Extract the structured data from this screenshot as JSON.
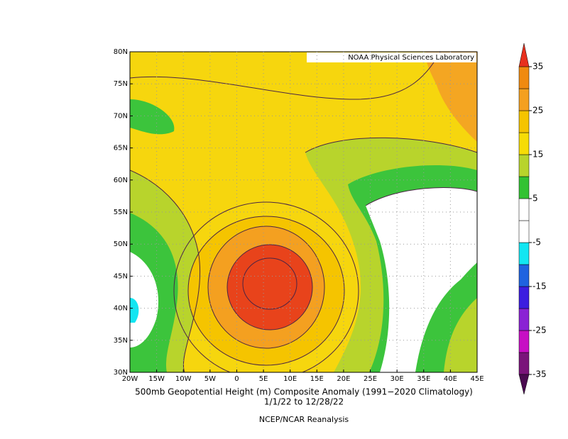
{
  "chart_data": {
    "type": "map",
    "source": "NOAA Physical Sciences Laboratory",
    "title": "500mb Geopotential Height (m) Composite Anomaly (1991−2020 Climatology)",
    "subtitle": "1/1/22  to 12/28/22",
    "footer": "NCEP/NCAR Reanalysis",
    "xlim": [
      -20,
      45
    ],
    "ylim": [
      30,
      80
    ],
    "xticks": [
      {
        "value": -20,
        "label": "20W"
      },
      {
        "value": -15,
        "label": "15W"
      },
      {
        "value": -10,
        "label": "10W"
      },
      {
        "value": -5,
        "label": "5W"
      },
      0,
      {
        "value": 5,
        "label": "5E"
      },
      {
        "value": 10,
        "label": "10E"
      },
      {
        "value": 15,
        "label": "15E"
      },
      {
        "value": 20,
        "label": "20E"
      },
      {
        "value": 25,
        "label": "25E"
      },
      {
        "value": 30,
        "label": "30E"
      },
      {
        "value": 35,
        "label": "35E"
      },
      {
        "value": 40,
        "label": "40E"
      },
      {
        "value": 45,
        "label": "45E"
      }
    ],
    "yticks": [
      {
        "value": 30,
        "label": "30N"
      },
      {
        "value": 35,
        "label": "35N"
      },
      {
        "value": 40,
        "label": "40N"
      },
      {
        "value": 45,
        "label": "45N"
      },
      {
        "value": 50,
        "label": "50N"
      },
      {
        "value": 55,
        "label": "55N"
      },
      {
        "value": 60,
        "label": "60N"
      },
      {
        "value": 65,
        "label": "65N"
      },
      {
        "value": 70,
        "label": "70N"
      },
      {
        "value": 75,
        "label": "75N"
      },
      {
        "value": 80,
        "label": "80N"
      }
    ],
    "grid": true,
    "colorbar": {
      "levels": [
        -35,
        -30,
        -25,
        -20,
        -15,
        -10,
        -5,
        0,
        5,
        10,
        15,
        20,
        25,
        30,
        35
      ],
      "colors": [
        "#4a0a50",
        "#7a147a",
        "#c70fc4",
        "#8a22d4",
        "#3c1ee0",
        "#1f63e0",
        "#12e6f2",
        "#ffffff",
        "#ffffff",
        "#33c233",
        "#b8d42c",
        "#f6dc06",
        "#f5c400",
        "#f4a020",
        "#f08a10",
        "#e8301e"
      ],
      "ticks": [
        35,
        25,
        15,
        5,
        -5,
        -15,
        -25,
        -35
      ]
    }
  }
}
